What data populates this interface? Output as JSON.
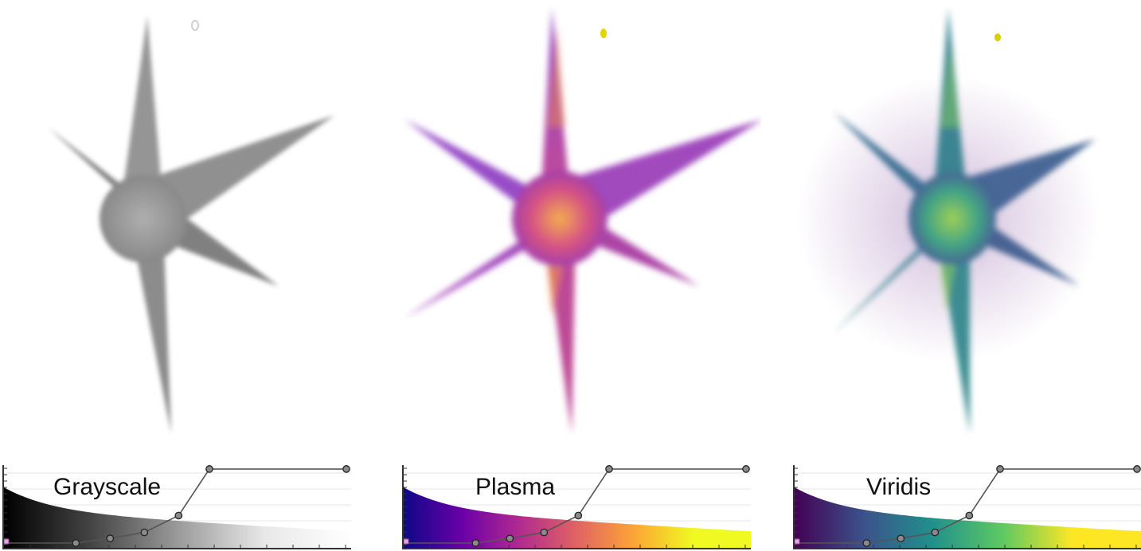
{
  "panels": [
    {
      "id": "grayscale",
      "colormap_name": "Grayscale",
      "gradient_stops": [
        "#000000",
        "#444444",
        "#9a9a9a",
        "#e8e8e8",
        "#ffffff"
      ],
      "star_colors": {
        "outer": "#8a8a8a",
        "mid": "#777777",
        "core": "#9c9c9c",
        "halo": "#bdbdbd"
      },
      "marker_color": "#d8d8d8"
    },
    {
      "id": "plasma",
      "colormap_name": "Plasma",
      "gradient_stops": [
        "#0d0887",
        "#6a00a8",
        "#b12a90",
        "#e16462",
        "#fca636",
        "#f0f921",
        "#f0f921"
      ],
      "star_colors": {
        "outer": "#8a3cc7",
        "mid": "#b52b8f",
        "core": "#f08a3a",
        "halo": "#6c5cf0"
      },
      "marker_color": "#e5d300"
    },
    {
      "id": "viridis",
      "colormap_name": "Viridis",
      "gradient_stops": [
        "#440154",
        "#3b528b",
        "#21918c",
        "#5ec962",
        "#fde725",
        "#fde725"
      ],
      "star_colors": {
        "outer": "#2e7d8a",
        "mid": "#3a5d8f",
        "core": "#8fd14f",
        "halo": "#7b3f9a"
      },
      "marker_color": "#d8d000"
    }
  ],
  "transfer_function": {
    "control_points": [
      [
        0,
        0
      ],
      [
        0.21,
        0.0
      ],
      [
        0.31,
        0.06
      ],
      [
        0.41,
        0.14
      ],
      [
        0.51,
        0.36
      ],
      [
        0.6,
        0.97
      ],
      [
        1.0,
        0.97
      ]
    ]
  }
}
